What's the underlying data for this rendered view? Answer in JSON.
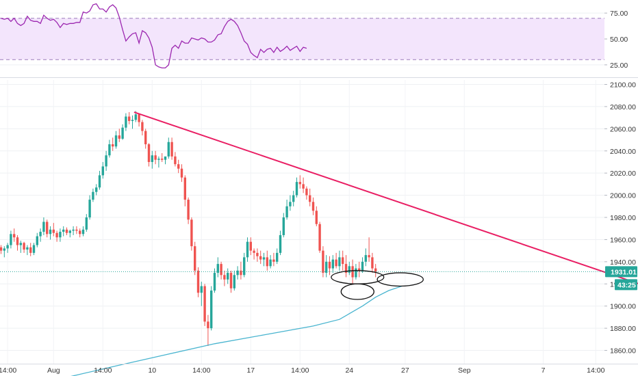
{
  "chart_data": [
    {
      "type": "line",
      "name": "RSI",
      "title": "",
      "ylim": [
        15,
        85
      ],
      "y_ticks": [
        "75.00",
        "50.00",
        "25.00"
      ],
      "y_tick_values": [
        75,
        50,
        25
      ],
      "band": [
        30,
        70
      ],
      "grid": true,
      "line_color": "#9c27b0",
      "band_color": "#f3e5fc",
      "band_border_color": "#9c7cba",
      "values": [
        70,
        69,
        70,
        67,
        70,
        65,
        63,
        65,
        72,
        68,
        67,
        67,
        65,
        73,
        70,
        68,
        69,
        66,
        61,
        65,
        64,
        65,
        65,
        66,
        66,
        76,
        75,
        77,
        83,
        84,
        79,
        79,
        76,
        81,
        83,
        80,
        71,
        59,
        48,
        52,
        55,
        56,
        46,
        58,
        56,
        51,
        42,
        25,
        23,
        22,
        22,
        25,
        41,
        44,
        41,
        48,
        46,
        46,
        51,
        50,
        49,
        51,
        50,
        47,
        47,
        49,
        54,
        55,
        62,
        67,
        69,
        67,
        63,
        56,
        48,
        45,
        37,
        34,
        32,
        40,
        37,
        40,
        41,
        37,
        42,
        38,
        40,
        43,
        39,
        41,
        43,
        38,
        42,
        41
      ]
    },
    {
      "type": "candlestick",
      "name": "Price",
      "title": "",
      "ylim": [
        1848,
        2104
      ],
      "y_ticks": [
        "2100.00",
        "2080.00",
        "2060.00",
        "2040.00",
        "2020.00",
        "2000.00",
        "1980.00",
        "1960.00",
        "1940.00",
        "1920.00",
        "1900.00",
        "1880.00",
        "1860.00"
      ],
      "y_tick_values": [
        2100,
        2080,
        2060,
        2040,
        2020,
        2000,
        1980,
        1960,
        1940,
        1920,
        1900,
        1880,
        1860
      ],
      "x_ticks": [
        "14:00",
        "Aug",
        "14:00",
        "10",
        "14:00",
        "17",
        "14:00",
        "24",
        "27",
        "Sep",
        "7",
        "14:00"
      ],
      "x_tick_index": [
        2,
        16,
        31,
        46,
        61,
        76,
        91,
        106,
        123,
        141,
        165,
        181
      ],
      "grid": true,
      "up_color": "#26a69a",
      "down_color": "#ef5350",
      "candles": [
        [
          1953,
          1955,
          1947,
          1950
        ],
        [
          1950,
          1954,
          1944,
          1952
        ],
        [
          1952,
          1957,
          1948,
          1955
        ],
        [
          1955,
          1968,
          1952,
          1965
        ],
        [
          1965,
          1970,
          1958,
          1962
        ],
        [
          1962,
          1964,
          1950,
          1955
        ],
        [
          1955,
          1959,
          1948,
          1957
        ],
        [
          1957,
          1958,
          1948,
          1951
        ],
        [
          1951,
          1955,
          1946,
          1953
        ],
        [
          1953,
          1957,
          1945,
          1948
        ],
        [
          1948,
          1957,
          1946,
          1955
        ],
        [
          1955,
          1966,
          1953,
          1963
        ],
        [
          1963,
          1970,
          1958,
          1967
        ],
        [
          1967,
          1980,
          1964,
          1976
        ],
        [
          1976,
          1978,
          1962,
          1965
        ],
        [
          1965,
          1972,
          1960,
          1969
        ],
        [
          1969,
          1975,
          1963,
          1966
        ],
        [
          1966,
          1968,
          1958,
          1962
        ],
        [
          1962,
          1970,
          1958,
          1967
        ],
        [
          1967,
          1972,
          1963,
          1969
        ],
        [
          1969,
          1971,
          1964,
          1966
        ],
        [
          1966,
          1969,
          1962,
          1968
        ],
        [
          1968,
          1972,
          1964,
          1969
        ],
        [
          1969,
          1972,
          1965,
          1968
        ],
        [
          1968,
          1970,
          1962,
          1965
        ],
        [
          1965,
          1972,
          1963,
          1969
        ],
        [
          1969,
          1983,
          1967,
          1980
        ],
        [
          1980,
          2000,
          1978,
          1996
        ],
        [
          1996,
          2006,
          1994,
          2003
        ],
        [
          2003,
          2010,
          2000,
          2007
        ],
        [
          2007,
          2022,
          2005,
          2018
        ],
        [
          2018,
          2030,
          2015,
          2026
        ],
        [
          2026,
          2040,
          2022,
          2036
        ],
        [
          2036,
          2050,
          2034,
          2046
        ],
        [
          2046,
          2052,
          2040,
          2044
        ],
        [
          2044,
          2058,
          2042,
          2054
        ],
        [
          2054,
          2060,
          2048,
          2051
        ],
        [
          2051,
          2064,
          2050,
          2061
        ],
        [
          2061,
          2074,
          2058,
          2071
        ],
        [
          2071,
          2075,
          2064,
          2067
        ],
        [
          2067,
          2072,
          2060,
          2068
        ],
        [
          2068,
          2076,
          2066,
          2073
        ],
        [
          2073,
          2074,
          2062,
          2066
        ],
        [
          2066,
          2068,
          2054,
          2058
        ],
        [
          2058,
          2060,
          2042,
          2046
        ],
        [
          2046,
          2047,
          2026,
          2030
        ],
        [
          2030,
          2040,
          2024,
          2036
        ],
        [
          2036,
          2040,
          2028,
          2032
        ],
        [
          2032,
          2035,
          2025,
          2033
        ],
        [
          2033,
          2038,
          2030,
          2032
        ],
        [
          2032,
          2034,
          2028,
          2035
        ],
        [
          2035,
          2052,
          2033,
          2048
        ],
        [
          2048,
          2052,
          2032,
          2035
        ],
        [
          2035,
          2039,
          2026,
          2028
        ],
        [
          2028,
          2032,
          2020,
          2024
        ],
        [
          2024,
          2028,
          2012,
          2016
        ],
        [
          2016,
          2018,
          1990,
          1996
        ],
        [
          1996,
          1998,
          1974,
          1978
        ],
        [
          1978,
          1980,
          1950,
          1954
        ],
        [
          1954,
          1958,
          1928,
          1932
        ],
        [
          1932,
          1935,
          1908,
          1912
        ],
        [
          1912,
          1922,
          1900,
          1918
        ],
        [
          1918,
          1920,
          1882,
          1886
        ],
        [
          1886,
          1892,
          1864,
          1880
        ],
        [
          1880,
          1918,
          1878,
          1914
        ],
        [
          1914,
          1934,
          1912,
          1930
        ],
        [
          1930,
          1944,
          1926,
          1938
        ],
        [
          1938,
          1940,
          1924,
          1928
        ],
        [
          1928,
          1932,
          1918,
          1924
        ],
        [
          1924,
          1934,
          1920,
          1930
        ],
        [
          1930,
          1932,
          1912,
          1916
        ],
        [
          1916,
          1932,
          1914,
          1928
        ],
        [
          1928,
          1936,
          1924,
          1932
        ],
        [
          1932,
          1940,
          1924,
          1928
        ],
        [
          1928,
          1948,
          1926,
          1944
        ],
        [
          1944,
          1962,
          1940,
          1958
        ],
        [
          1958,
          1962,
          1946,
          1950
        ],
        [
          1950,
          1952,
          1942,
          1948
        ],
        [
          1948,
          1952,
          1940,
          1945
        ],
        [
          1945,
          1950,
          1938,
          1942
        ],
        [
          1942,
          1948,
          1936,
          1944
        ],
        [
          1944,
          1950,
          1932,
          1936
        ],
        [
          1936,
          1946,
          1934,
          1942
        ],
        [
          1942,
          1948,
          1936,
          1940
        ],
        [
          1940,
          1952,
          1938,
          1948
        ],
        [
          1948,
          1968,
          1946,
          1964
        ],
        [
          1964,
          1984,
          1962,
          1980
        ],
        [
          1980,
          1996,
          1978,
          1990
        ],
        [
          1990,
          2000,
          1986,
          1994
        ],
        [
          1994,
          2004,
          1990,
          2000
        ],
        [
          2000,
          2016,
          1998,
          2012
        ],
        [
          2012,
          2018,
          2006,
          2010
        ],
        [
          2010,
          2016,
          2002,
          2006
        ],
        [
          2006,
          2008,
          1996,
          2000
        ],
        [
          2000,
          2006,
          1990,
          1994
        ],
        [
          1994,
          1998,
          1982,
          1986
        ],
        [
          1986,
          1990,
          1972,
          1974
        ],
        [
          1974,
          1976,
          1948,
          1950
        ],
        [
          1950,
          1954,
          1926,
          1930
        ],
        [
          1930,
          1946,
          1926,
          1940
        ],
        [
          1940,
          1945,
          1928,
          1934
        ],
        [
          1934,
          1946,
          1930,
          1942
        ],
        [
          1942,
          1948,
          1934,
          1936
        ],
        [
          1936,
          1950,
          1932,
          1944
        ],
        [
          1944,
          1950,
          1932,
          1938
        ],
        [
          1938,
          1946,
          1926,
          1930
        ],
        [
          1930,
          1940,
          1928,
          1936
        ],
        [
          1936,
          1942,
          1920,
          1926
        ],
        [
          1926,
          1938,
          1924,
          1934
        ],
        [
          1934,
          1940,
          1926,
          1932
        ],
        [
          1932,
          1944,
          1930,
          1940
        ],
        [
          1940,
          1952,
          1936,
          1946
        ],
        [
          1946,
          1962,
          1940,
          1944
        ],
        [
          1944,
          1948,
          1930,
          1934
        ],
        [
          1934,
          1938,
          1926,
          1931
        ]
      ],
      "moving_average": {
        "color": "#48b4cf",
        "values": [
          [
            19,
            1835
          ],
          [
            35,
            1846
          ],
          [
            50,
            1856
          ],
          [
            65,
            1866
          ],
          [
            80,
            1874
          ],
          [
            95,
            1882
          ],
          [
            103,
            1888
          ],
          [
            110,
            1900
          ],
          [
            114,
            1908
          ],
          [
            118,
            1914
          ],
          [
            122,
            1918
          ]
        ]
      },
      "trendline": {
        "color": "#e91e63",
        "from": [
          40.5,
          2075
        ],
        "to": [
          224,
          1890
        ]
      },
      "current_price": {
        "value": 1931.01,
        "label": "1931.01",
        "color": "#26a69a"
      },
      "countdown": {
        "label": "43:25",
        "color": "#26a69a"
      },
      "ellipses": [
        {
          "cx": 108.5,
          "cy": 1926,
          "rx": 8,
          "ry": 6
        },
        {
          "cx": 108.5,
          "cy": 1913,
          "rx": 5,
          "ry": 7
        },
        {
          "cx": 121.5,
          "cy": 1924,
          "rx": 7,
          "ry": 6
        }
      ]
    }
  ]
}
